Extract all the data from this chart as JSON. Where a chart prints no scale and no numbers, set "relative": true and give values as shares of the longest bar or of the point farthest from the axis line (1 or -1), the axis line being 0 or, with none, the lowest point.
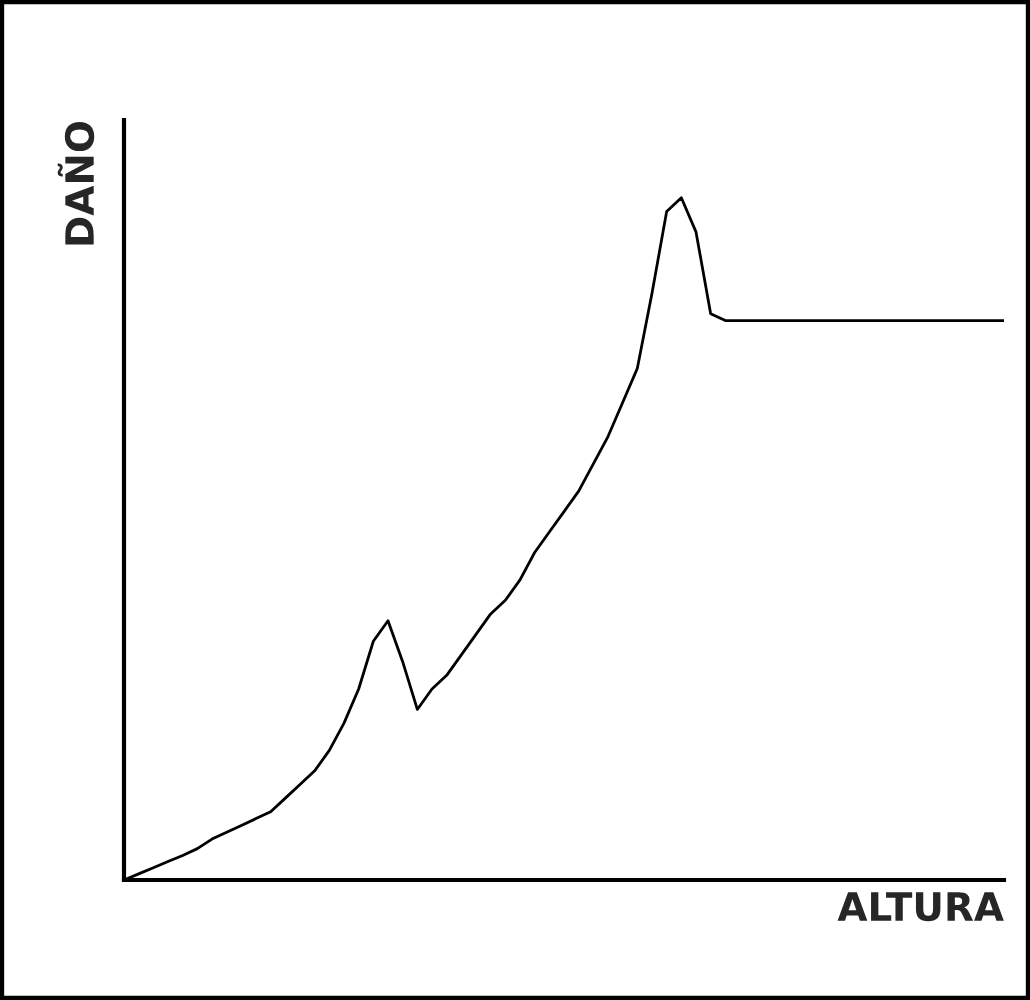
{
  "chart_data": {
    "type": "line",
    "relative": true,
    "xlabel": "ALTURA",
    "ylabel": "DAÑO",
    "categories": [
      null,
      null,
      null,
      null,
      null,
      null,
      null,
      null,
      null,
      null,
      null,
      null,
      null,
      null,
      null,
      null,
      null,
      null,
      null,
      null,
      null,
      null,
      null,
      null,
      null,
      null,
      null,
      null,
      null,
      null,
      null,
      null,
      null,
      null,
      null,
      null,
      null,
      null,
      null,
      null,
      null,
      null,
      null,
      null,
      null,
      null,
      null,
      null,
      null,
      null,
      null,
      null,
      null,
      null,
      null,
      null,
      null,
      null,
      null,
      null,
      null
    ],
    "series": [
      {
        "color": "#000000",
        "values": [
          0,
          0.009,
          0.018,
          0.027,
          0.036,
          0.046,
          0.06,
          0.07,
          0.08,
          0.09,
          0.1,
          0.12,
          0.14,
          0.16,
          0.19,
          0.23,
          0.28,
          0.35,
          0.38,
          0.32,
          0.25,
          0.28,
          0.3,
          0.33,
          0.36,
          0.39,
          0.41,
          0.44,
          0.48,
          0.51,
          0.54,
          0.57,
          0.61,
          0.65,
          0.7,
          0.75,
          0.86,
          0.98,
          1,
          0.95,
          0.83,
          0.82,
          0.82,
          0.82,
          0.82,
          0.82,
          0.82,
          0.82,
          0.82,
          0.82,
          0.82,
          0.82,
          0.82,
          0.82,
          0.82,
          0.82,
          0.82,
          0.82,
          0.82,
          0.82,
          0.82
        ]
      }
    ],
    "tick_labels": false,
    "marker": "none",
    "line_style": "solid"
  }
}
